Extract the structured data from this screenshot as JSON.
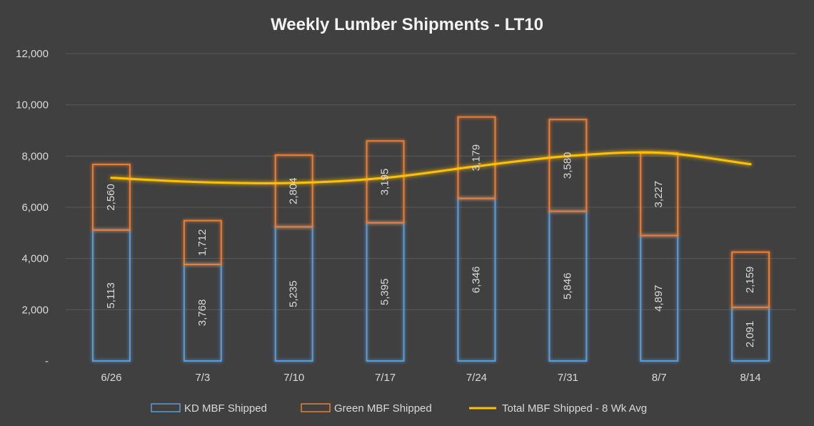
{
  "chart_data": {
    "type": "bar",
    "stacked": true,
    "title": "Weekly Lumber Shipments - LT10",
    "categories": [
      "6/26",
      "7/3",
      "7/10",
      "7/17",
      "7/24",
      "7/31",
      "8/7",
      "8/14"
    ],
    "series": [
      {
        "name": "KD MBF Shipped",
        "kind": "bar",
        "color": "#5b9bd5",
        "values": [
          5113,
          3768,
          5235,
          5395,
          6346,
          5846,
          4897,
          2091
        ],
        "labels": [
          "5,113",
          "3,768",
          "5,235",
          "5,395",
          "6,346",
          "5,846",
          "4,897",
          "2,091"
        ]
      },
      {
        "name": "Green MBF Shipped",
        "kind": "bar",
        "color": "#ed7d31",
        "values": [
          2560,
          1712,
          2804,
          3195,
          3179,
          3580,
          3227,
          2159
        ],
        "labels": [
          "2,560",
          "1,712",
          "2,804",
          "3,195",
          "3,179",
          "3,580",
          "3,227",
          "2,159"
        ]
      },
      {
        "name": "Total MBF Shipped - 8 Wk Avg",
        "kind": "line",
        "color": "#ffc000",
        "values": [
          7150,
          6980,
          6950,
          7150,
          7600,
          8000,
          8130,
          7680
        ]
      }
    ],
    "y_ticks": [
      "-",
      "2,000",
      "4,000",
      "6,000",
      "8,000",
      "10,000",
      "12,000"
    ],
    "ylim": [
      0,
      12000
    ],
    "grid": true,
    "legend_position": "bottom",
    "xlabel": "",
    "ylabel": ""
  }
}
